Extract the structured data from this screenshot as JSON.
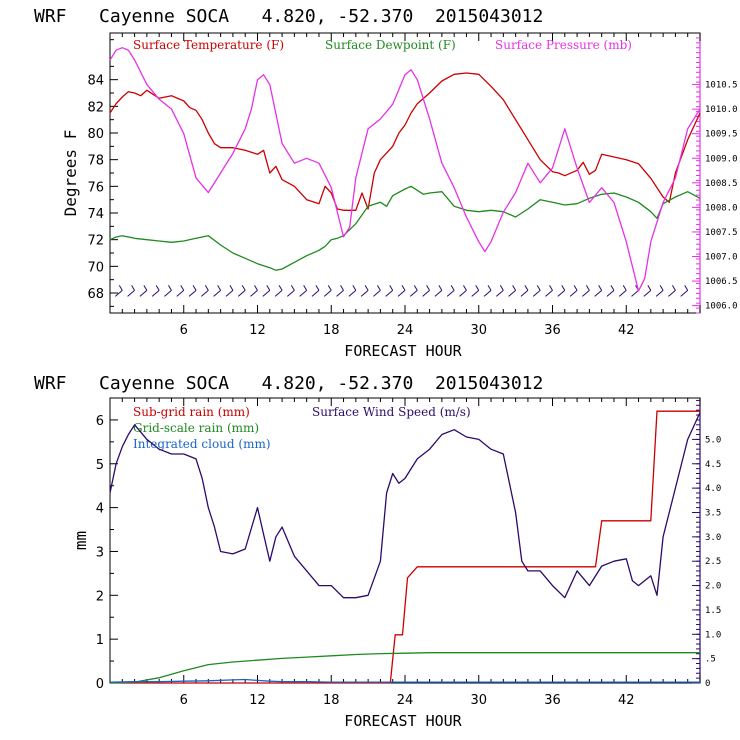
{
  "colors": {
    "temperature": "#cc0000",
    "dewpoint": "#1f8a1f",
    "pressure": "#e632e6",
    "wind_barb": "#2c0a6b",
    "wind_speed": "#2c0a6b",
    "subgrid_rain": "#cc0000",
    "gridscale_rain": "#1f8a1f",
    "cloud": "#1a64c8"
  },
  "chart_data": [
    {
      "type": "line",
      "title": "WRF   Cayenne SOCA   4.820, -52.370  2015043012",
      "xlabel": "FORECAST HOUR",
      "ylabel": "Degrees F",
      "xlim": [
        0,
        48
      ],
      "ylim": [
        66.5,
        87.5
      ],
      "x_ticks": [
        "6",
        "12",
        "18",
        "24",
        "30",
        "36",
        "42"
      ],
      "x_tick_values": [
        6,
        12,
        18,
        24,
        30,
        36,
        42
      ],
      "y_ticks": [
        "68",
        "70",
        "72",
        "74",
        "76",
        "78",
        "80",
        "82",
        "84"
      ],
      "y_tick_values": [
        68,
        70,
        72,
        74,
        76,
        78,
        80,
        82,
        84
      ],
      "y2_label": "Surface Pressure (mb)",
      "y2lim": [
        1005.85,
        1011.55
      ],
      "y2_ticks": [
        "1006.0",
        "1006.5",
        "1007.0",
        "1007.5",
        "1008.0",
        "1008.5",
        "1009.0",
        "1009.5",
        "1010.0",
        "1010.5"
      ],
      "y2_tick_values": [
        1006.0,
        1006.5,
        1007.0,
        1007.5,
        1008.0,
        1008.5,
        1009.0,
        1009.5,
        1010.0,
        1010.5
      ],
      "legend": [
        "Surface Temperature (F)",
        "Surface Dewpoint (F)",
        "Surface Pressure (mb)"
      ],
      "wind_barbs": true,
      "series": [
        {
          "name": "Surface Temperature (F)",
          "color_key": "temperature",
          "axis": "left",
          "x": [
            0,
            0.5,
            1,
            1.5,
            2,
            2.5,
            3,
            4,
            5,
            6,
            6.5,
            7,
            7.5,
            8,
            8.5,
            9,
            10,
            11,
            12,
            12.5,
            13,
            13.5,
            14,
            15,
            16,
            17,
            17.5,
            18,
            18.5,
            19,
            20,
            20.5,
            21,
            21.5,
            22,
            23,
            23.5,
            24,
            24.5,
            25,
            26,
            27,
            28,
            29,
            30,
            31,
            32,
            33,
            34,
            35,
            36,
            36.5,
            37,
            38,
            38.5,
            39,
            39.5,
            40,
            41,
            42,
            43,
            44,
            45,
            45.5,
            46,
            47,
            48
          ],
          "y": [
            81.5,
            82.2,
            82.7,
            83.1,
            83.0,
            82.8,
            83.2,
            82.6,
            82.8,
            82.4,
            81.9,
            81.7,
            81.0,
            80.0,
            79.2,
            78.9,
            78.9,
            78.7,
            78.4,
            78.7,
            77.0,
            77.5,
            76.5,
            76.0,
            75.0,
            74.7,
            76.0,
            75.5,
            74.3,
            74.2,
            74.2,
            75.5,
            74.3,
            77.0,
            78.0,
            79.0,
            80.0,
            80.6,
            81.5,
            82.2,
            83.0,
            83.9,
            84.4,
            84.5,
            84.4,
            83.5,
            82.5,
            81.0,
            79.5,
            78.0,
            77.1,
            77.0,
            76.8,
            77.2,
            77.8,
            76.9,
            77.2,
            78.4,
            78.2,
            78.0,
            77.7,
            76.6,
            75.2,
            74.8,
            77.0,
            79.5,
            81.5
          ]
        },
        {
          "name": "Surface Dewpoint (F)",
          "color_key": "dewpoint",
          "axis": "left",
          "x": [
            0,
            0.5,
            1,
            2,
            3,
            4,
            5,
            6,
            7,
            8,
            9,
            10,
            11,
            12,
            13,
            13.5,
            14,
            15,
            16,
            17,
            17.5,
            18,
            18.5,
            19,
            20,
            21,
            22,
            22.5,
            23,
            24,
            24.5,
            25,
            25.5,
            26,
            27,
            28,
            29,
            30,
            31,
            32,
            33,
            34,
            35,
            36,
            37,
            38,
            39,
            40,
            41,
            42,
            43,
            44,
            44.5,
            45,
            46,
            47,
            48
          ],
          "y": [
            72.0,
            72.2,
            72.3,
            72.1,
            72.0,
            71.9,
            71.8,
            71.9,
            72.1,
            72.3,
            71.6,
            71.0,
            70.6,
            70.2,
            69.9,
            69.7,
            69.8,
            70.3,
            70.8,
            71.2,
            71.5,
            72.0,
            72.1,
            72.3,
            73.2,
            74.5,
            74.8,
            74.5,
            75.3,
            75.8,
            76.0,
            75.7,
            75.4,
            75.5,
            75.6,
            74.5,
            74.2,
            74.1,
            74.2,
            74.1,
            73.7,
            74.3,
            75.0,
            74.8,
            74.6,
            74.7,
            75.1,
            75.4,
            75.5,
            75.2,
            74.8,
            74.1,
            73.6,
            74.7,
            75.2,
            75.6,
            75.1
          ]
        },
        {
          "name": "Surface Pressure (mb)",
          "color_key": "pressure",
          "axis": "right",
          "x": [
            0,
            0.5,
            1,
            1.5,
            2,
            3,
            4,
            5,
            6,
            7,
            8,
            9,
            10,
            11,
            11.5,
            12,
            12.5,
            13,
            14,
            15,
            16,
            17,
            18,
            19,
            19.5,
            20,
            21,
            22,
            23,
            24,
            24.5,
            25,
            26,
            27,
            28,
            29,
            30,
            30.5,
            31,
            32,
            33,
            34,
            35,
            36,
            37,
            38,
            39,
            40,
            41,
            42,
            43,
            43.5,
            44,
            45,
            46,
            47,
            48
          ],
          "y": [
            1011.0,
            1011.2,
            1011.25,
            1011.2,
            1011.0,
            1010.5,
            1010.2,
            1010.0,
            1009.5,
            1008.6,
            1008.3,
            1008.7,
            1009.1,
            1009.6,
            1010.0,
            1010.6,
            1010.7,
            1010.5,
            1009.3,
            1008.9,
            1009.0,
            1008.9,
            1008.4,
            1007.4,
            1007.6,
            1008.6,
            1009.6,
            1009.8,
            1010.1,
            1010.7,
            1010.8,
            1010.6,
            1009.8,
            1008.9,
            1008.4,
            1007.8,
            1007.3,
            1007.1,
            1007.3,
            1007.9,
            1008.3,
            1008.9,
            1008.5,
            1008.8,
            1009.6,
            1008.8,
            1008.1,
            1008.4,
            1008.1,
            1007.3,
            1006.3,
            1006.55,
            1007.3,
            1008.1,
            1008.6,
            1009.6,
            1010.0
          ]
        }
      ]
    },
    {
      "type": "line",
      "title": "WRF   Cayenne SOCA   4.820, -52.370  2015043012",
      "xlabel": "FORECAST HOUR",
      "ylabel": "mm",
      "xlim": [
        0,
        48
      ],
      "ylim": [
        0,
        6.5
      ],
      "x_ticks": [
        "6",
        "12",
        "18",
        "24",
        "30",
        "36",
        "42"
      ],
      "x_tick_values": [
        6,
        12,
        18,
        24,
        30,
        36,
        42
      ],
      "y_ticks": [
        "0",
        "1",
        "2",
        "3",
        "4",
        "5",
        "6"
      ],
      "y_tick_values": [
        0,
        1,
        2,
        3,
        4,
        5,
        6
      ],
      "y2_label": "Surface Wind Speed (m/s)",
      "y2lim": [
        0,
        5.85
      ],
      "y2_ticks": [
        "0",
        ".5",
        "1.0",
        "1.5",
        "2.0",
        "2.5",
        "3.0",
        "3.5",
        "4.0",
        "4.5",
        "5.0"
      ],
      "y2_tick_values": [
        0,
        0.5,
        1.0,
        1.5,
        2.0,
        2.5,
        3.0,
        3.5,
        4.0,
        4.5,
        5.0
      ],
      "legend": [
        "Sub-grid rain (mm)",
        "Grid-scale rain (mm)",
        "Integrated cloud (mm)",
        "Surface Wind Speed (m/s)"
      ],
      "series": [
        {
          "name": "Sub-grid rain (mm)",
          "color_key": "subgrid_rain",
          "axis": "left",
          "x": [
            0,
            22.8,
            23.2,
            23.8,
            24.2,
            25,
            39.5,
            40,
            44,
            44.5,
            48
          ],
          "y": [
            0,
            0,
            1.1,
            1.1,
            2.4,
            2.65,
            2.65,
            3.7,
            3.7,
            6.2,
            6.2
          ]
        },
        {
          "name": "Grid-scale rain (mm)",
          "color_key": "gridscale_rain",
          "axis": "left",
          "x": [
            0,
            2,
            4,
            6,
            8,
            10,
            12,
            14,
            16,
            18,
            20,
            22,
            24,
            26,
            28,
            30,
            34,
            38,
            42,
            46,
            48
          ],
          "y": [
            0,
            0.02,
            0.12,
            0.28,
            0.42,
            0.48,
            0.52,
            0.56,
            0.59,
            0.62,
            0.65,
            0.67,
            0.68,
            0.69,
            0.69,
            0.69,
            0.69,
            0.69,
            0.69,
            0.69,
            0.69
          ]
        },
        {
          "name": "Integrated cloud (mm)",
          "color_key": "cloud",
          "axis": "left",
          "x": [
            0,
            2,
            4,
            6,
            8,
            10,
            11,
            12,
            13,
            14,
            16,
            18,
            20,
            24,
            30,
            36,
            42,
            48
          ],
          "y": [
            0.02,
            0.03,
            0.03,
            0.04,
            0.05,
            0.07,
            0.08,
            0.06,
            0.04,
            0.03,
            0.03,
            0.02,
            0.02,
            0.02,
            0.02,
            0.02,
            0.02,
            0.02
          ]
        },
        {
          "name": "Surface Wind Speed (m/s)",
          "color_key": "wind_speed",
          "axis": "right",
          "x": [
            0,
            0.5,
            1,
            1.5,
            2,
            3,
            4,
            5,
            6,
            7,
            7.5,
            8,
            8.5,
            9,
            10,
            11,
            12,
            12.5,
            13,
            13.5,
            14,
            15,
            16,
            17,
            18,
            19,
            20,
            21,
            22,
            22.5,
            23,
            23.5,
            24,
            25,
            26,
            27,
            28,
            29,
            30,
            31,
            32,
            33,
            33.5,
            34,
            35,
            36,
            37,
            38,
            39,
            40,
            41,
            42,
            42.5,
            43,
            44,
            44.5,
            45,
            46,
            47,
            48
          ],
          "y": [
            3.9,
            4.5,
            4.85,
            5.1,
            5.3,
            5.0,
            4.8,
            4.7,
            4.7,
            4.6,
            4.2,
            3.6,
            3.2,
            2.7,
            2.65,
            2.75,
            3.6,
            3.05,
            2.5,
            3.0,
            3.2,
            2.6,
            2.3,
            2.0,
            2.0,
            1.75,
            1.75,
            1.8,
            2.5,
            3.9,
            4.3,
            4.1,
            4.2,
            4.6,
            4.8,
            5.1,
            5.2,
            5.05,
            5.0,
            4.8,
            4.7,
            3.5,
            2.5,
            2.3,
            2.3,
            2.0,
            1.75,
            2.3,
            2.0,
            2.4,
            2.5,
            2.55,
            2.1,
            2.0,
            2.2,
            1.8,
            3.0,
            4.0,
            5.0,
            5.55
          ]
        }
      ]
    }
  ]
}
